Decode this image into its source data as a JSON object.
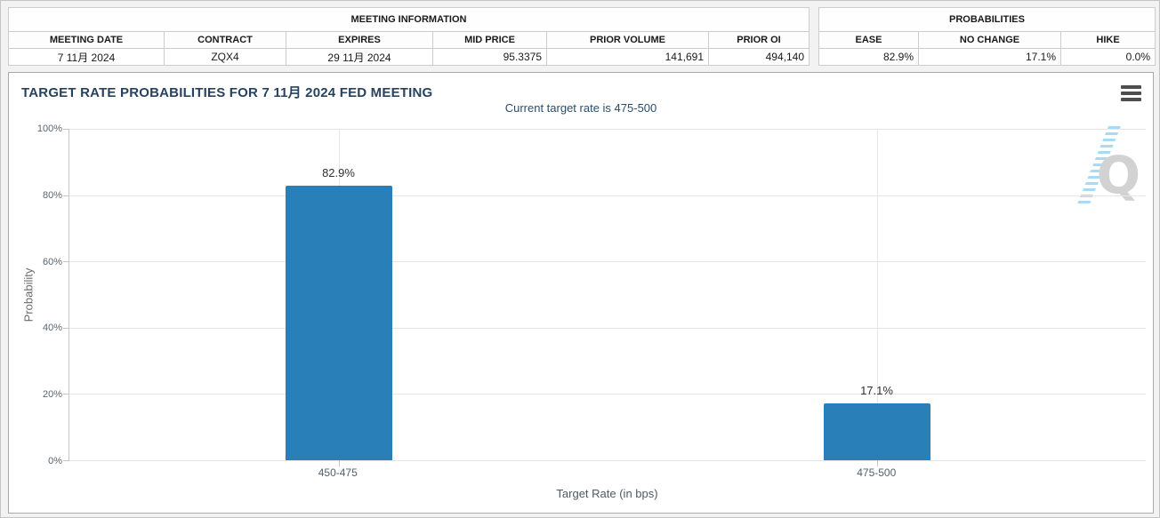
{
  "meeting_info": {
    "title": "MEETING INFORMATION",
    "columns": [
      "MEETING DATE",
      "CONTRACT",
      "EXPIRES",
      "MID PRICE",
      "PRIOR VOLUME",
      "PRIOR OI"
    ],
    "row": [
      "7 11月 2024",
      "ZQX4",
      "29 11月 2024",
      "95.3375",
      "141,691",
      "494,140"
    ]
  },
  "probabilities": {
    "title": "PROBABILITIES",
    "columns": [
      "EASE",
      "NO CHANGE",
      "HIKE"
    ],
    "row": [
      "82.9%",
      "17.1%",
      "0.0%"
    ]
  },
  "chart": {
    "title": "TARGET RATE PROBABILITIES FOR 7 11月 2024 FED MEETING",
    "subtitle": "Current target rate is 475-500",
    "watermark_letter": "Q",
    "menu_icon": "hamburger-menu-icon"
  },
  "chart_data": {
    "type": "bar",
    "title": "TARGET RATE PROBABILITIES FOR 7 11月 2024 FED MEETING",
    "subtitle": "Current target rate is 475-500",
    "categories": [
      "450-475",
      "475-500"
    ],
    "values": [
      82.9,
      17.1
    ],
    "value_labels": [
      "82.9%",
      "17.1%"
    ],
    "xlabel": "Target Rate (in bps)",
    "ylabel": "Probability",
    "ylim": [
      0,
      100
    ],
    "ytick_step": 20,
    "ytick_labels": [
      "0%",
      "20%",
      "40%",
      "60%",
      "80%",
      "100%"
    ],
    "bar_color": "#2980b9",
    "grid": true,
    "legend": false
  }
}
